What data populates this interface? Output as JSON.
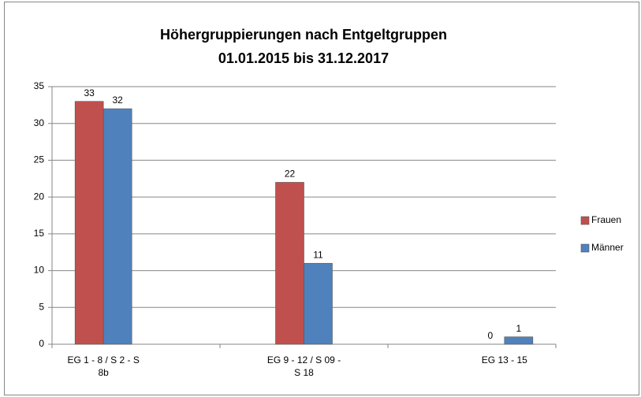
{
  "chart_data": {
    "type": "bar",
    "title": [
      "Höhergruppierungen nach Entgeltgruppen",
      "01.01.2015 bis 31.12.2017"
    ],
    "categories": [
      "EG 1 - 8 / S 2 - S 8b",
      "EG 9 - 12 / S 09 - S 18",
      "EG 13 - 15"
    ],
    "series": [
      {
        "name": "Frauen",
        "color": "#c0504d",
        "values": [
          33,
          22,
          0
        ]
      },
      {
        "name": "Männer",
        "color": "#4f81bd",
        "values": [
          32,
          11,
          1
        ]
      }
    ],
    "ylim": [
      0,
      35
    ],
    "yticks": [
      0,
      5,
      10,
      15,
      20,
      25,
      30,
      35
    ],
    "grid": true,
    "legend": "right"
  }
}
